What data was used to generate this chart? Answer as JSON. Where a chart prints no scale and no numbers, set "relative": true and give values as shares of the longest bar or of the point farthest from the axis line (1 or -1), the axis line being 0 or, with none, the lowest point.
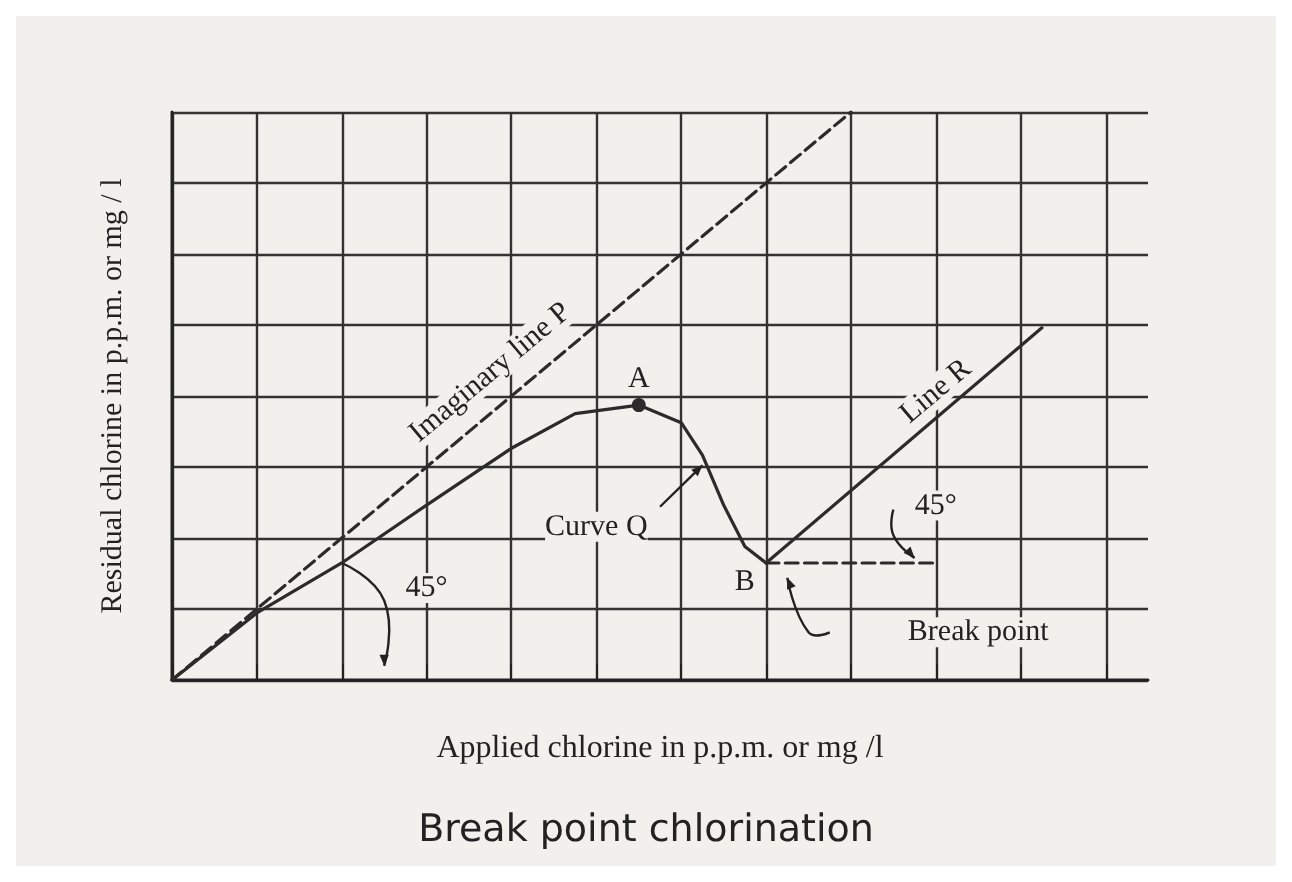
{
  "chart_data": {
    "type": "line",
    "title": "Break point chlorination",
    "xlabel": "Applied chlorine in p.p.m. or mg /l",
    "ylabel": "Residual chlorine in p.p.m. or mg / l",
    "relative": true,
    "categories": [
      null,
      null,
      null,
      null,
      null,
      null,
      null,
      null,
      null,
      null,
      null,
      null,
      null,
      null,
      null,
      null,
      null,
      null,
      null,
      null,
      null,
      null,
      null,
      null,
      null,
      null,
      null,
      null,
      null,
      null,
      null,
      null,
      null,
      null,
      null,
      null,
      null,
      null,
      null,
      null,
      null,
      null,
      null,
      null,
      null,
      null,
      null
    ],
    "grid": true,
    "marker": "none",
    "series": [
      {
        "color": "#2b2b2b",
        "line_style": "dashed",
        "values": [
          0,
          null,
          null,
          null,
          null,
          null,
          null,
          null,
          null,
          null,
          null,
          null,
          null,
          null,
          null,
          null,
          null,
          null,
          null,
          null,
          null,
          null,
          null,
          null,
          null,
          null,
          null,
          null,
          null,
          null,
          null,
          null,
          1,
          null,
          null,
          null,
          null,
          null,
          null,
          null,
          null,
          null,
          null,
          null,
          null,
          null,
          null
        ]
      },
      {
        "color": "#2b2b2b",
        "line_style": "solid",
        "values": [
          0,
          null,
          null,
          null,
          0.118,
          null,
          null,
          null,
          0.206,
          null,
          null,
          null,
          0.308,
          null,
          null,
          null,
          0.408,
          null,
          null,
          0.469,
          null,
          null,
          0.484,
          null,
          0.453,
          0.396,
          0.308,
          0.235,
          0.206,
          null,
          null,
          null,
          null,
          null,
          null,
          null,
          null,
          null,
          null,
          null,
          null,
          null,
          null,
          null,
          null,
          null,
          null
        ]
      },
      {
        "color": "#2b2b2b",
        "line_style": "solid",
        "values": [
          null,
          null,
          null,
          null,
          null,
          null,
          null,
          null,
          null,
          null,
          null,
          null,
          null,
          null,
          null,
          null,
          null,
          null,
          null,
          null,
          null,
          null,
          null,
          null,
          null,
          null,
          null,
          null,
          0.206,
          null,
          null,
          null,
          null,
          null,
          null,
          null,
          null,
          null,
          null,
          null,
          null,
          0.62,
          null,
          null,
          null,
          null,
          null
        ]
      },
      {
        "color": "#2b2b2b",
        "line_style": "dashed",
        "values": [
          null,
          null,
          null,
          null,
          null,
          null,
          null,
          null,
          null,
          null,
          null,
          null,
          null,
          null,
          null,
          null,
          null,
          null,
          null,
          null,
          null,
          null,
          null,
          null,
          null,
          null,
          null,
          null,
          0.206,
          null,
          null,
          null,
          null,
          null,
          null,
          null,
          0.206,
          null,
          null,
          null,
          null,
          null,
          null,
          null,
          null,
          null,
          null
        ]
      }
    ],
    "annotations": [
      "Imaginary line P",
      "A",
      "Curve Q",
      "B",
      "Break point",
      "Line R",
      "45°",
      "45°"
    ]
  }
}
